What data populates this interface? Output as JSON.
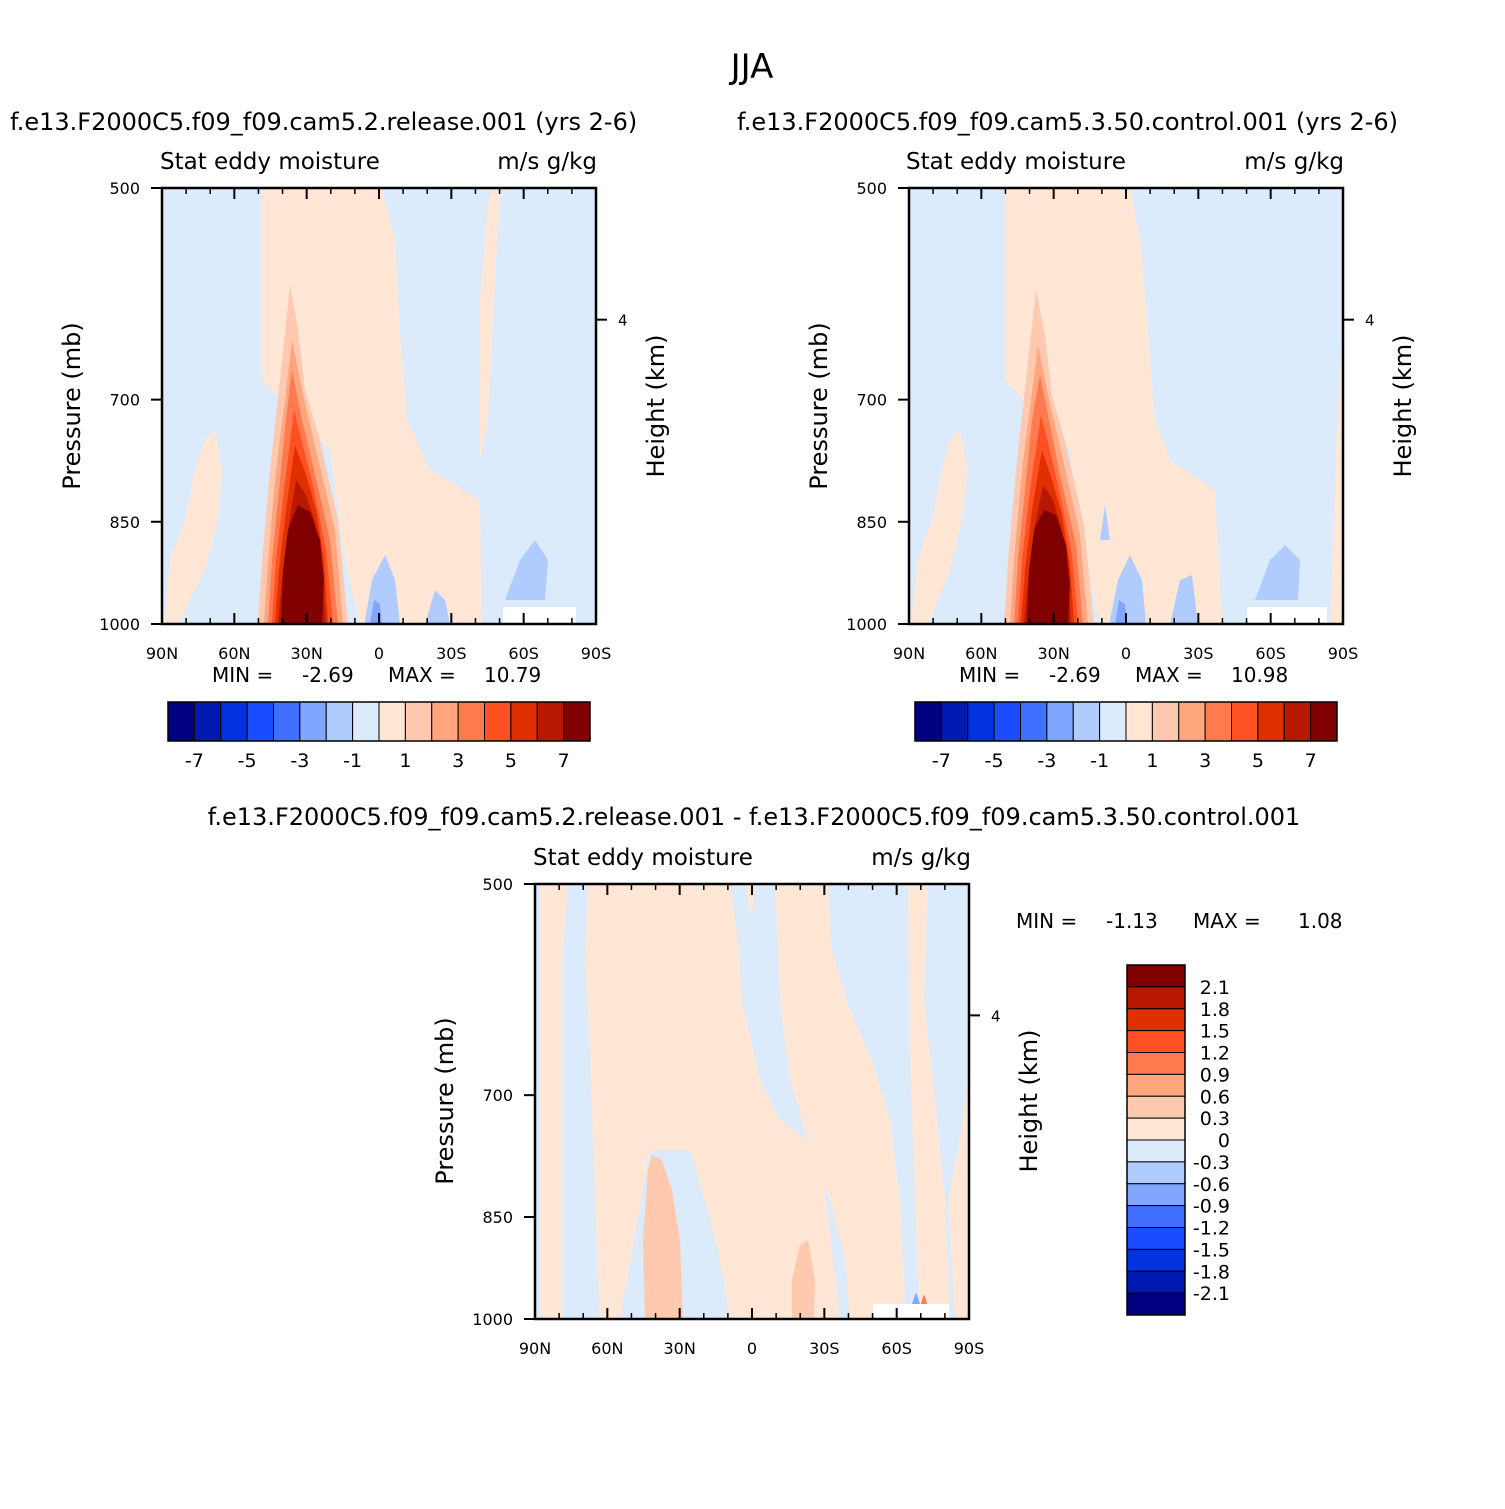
{
  "figure_title": "JJA",
  "chart_data": [
    {
      "id": "top-left",
      "type": "heatmap",
      "title": "f.e13.F2000C5.f09_f09.cam5.2.release.001  (yrs 2-6)",
      "left_label": "Stat eddy moisture",
      "right_label": "m/s  g/kg",
      "ylabel": "Pressure (mb)",
      "ylabel2": "Height (km)",
      "x_ticks": [
        "90N",
        "60N",
        "30N",
        "0",
        "30S",
        "60S",
        "90S"
      ],
      "y_ticks": [
        "500",
        "700",
        "850",
        "1000"
      ],
      "y2_ticks": [
        "4"
      ],
      "min_label": "MIN =",
      "min_value": "-2.69",
      "max_label": "MAX =",
      "max_value": "10.79",
      "levels": [
        -8,
        -7,
        -6,
        -5,
        -4,
        -3,
        -2,
        -1,
        0,
        1,
        2,
        3,
        4,
        5,
        6,
        7,
        8
      ],
      "colorbar_labels": [
        "-7",
        "-5",
        "-3",
        "-1",
        "1",
        "3",
        "5",
        "7"
      ]
    },
    {
      "id": "top-right",
      "type": "heatmap",
      "title": "f.e13.F2000C5.f09_f09.cam5.3.50.control.001  (yrs 2-6)",
      "left_label": "Stat eddy moisture",
      "right_label": "m/s  g/kg",
      "ylabel": "Pressure (mb)",
      "ylabel2": "Height (km)",
      "x_ticks": [
        "90N",
        "60N",
        "30N",
        "0",
        "30S",
        "60S",
        "90S"
      ],
      "y_ticks": [
        "500",
        "700",
        "850",
        "1000"
      ],
      "y2_ticks": [
        "4"
      ],
      "min_label": "MIN =",
      "min_value": "-2.69",
      "max_label": "MAX =",
      "max_value": "10.98",
      "levels": [
        -8,
        -7,
        -6,
        -5,
        -4,
        -3,
        -2,
        -1,
        0,
        1,
        2,
        3,
        4,
        5,
        6,
        7,
        8
      ],
      "colorbar_labels": [
        "-7",
        "-5",
        "-3",
        "-1",
        "1",
        "3",
        "5",
        "7"
      ]
    },
    {
      "id": "bottom",
      "type": "heatmap",
      "title": "f.e13.F2000C5.f09_f09.cam5.2.release.001 - f.e13.F2000C5.f09_f09.cam5.3.50.control.001",
      "left_label": "Stat eddy moisture",
      "right_label": "m/s  g/kg",
      "ylabel": "Pressure (mb)",
      "ylabel2": "Height (km)",
      "x_ticks": [
        "90N",
        "60N",
        "30N",
        "0",
        "30S",
        "60S",
        "90S"
      ],
      "y_ticks": [
        "500",
        "700",
        "850",
        "1000"
      ],
      "y2_ticks": [
        "4"
      ],
      "min_label": "MIN =",
      "min_value": "-1.13",
      "max_label": "MAX =",
      "max_value": "1.08",
      "colorbar_labels": [
        "2.1",
        "1.8",
        "1.5",
        "1.2",
        "0.9",
        "0.6",
        "0.3",
        "0",
        "-0.3",
        "-0.6",
        "-0.9",
        "-1.2",
        "-1.5",
        "-1.8",
        "-2.1"
      ]
    }
  ],
  "colors": {
    "scale16": [
      "#000080",
      "#0019b0",
      "#0033dd",
      "#1a4dff",
      "#4070ff",
      "#80a6ff",
      "#b0ccff",
      "#dcebfb",
      "#ffe6d5",
      "#ffc9b0",
      "#ffa67f",
      "#ff7a4e",
      "#ff5022",
      "#e03000",
      "#b81800",
      "#800000"
    ],
    "frame": "#000000",
    "missing": "#ffffff"
  }
}
